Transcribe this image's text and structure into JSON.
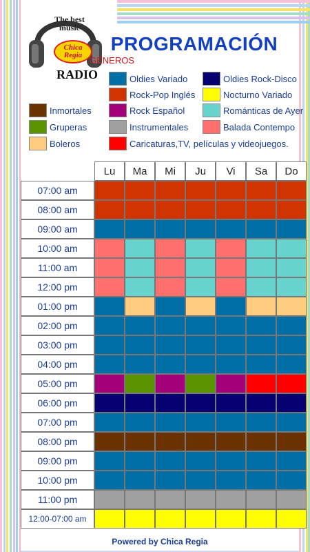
{
  "colors": {
    "oldies_variado": "#006fa5",
    "rock_pop_ingles": "#d03400",
    "rock_espanol": "#a4007a",
    "romanticas_ayer": "#66d3cc",
    "balada_contempo": "#ff6f6e",
    "oldies_rock_disco": "#060070",
    "nocturno_variado": "#ffff00",
    "inmortales": "#6a3200",
    "gruperas": "#5a9400",
    "boleros": "#ffcd80",
    "instrumentales": "#a0a0a0",
    "caricaturas": "#ff0000",
    "title_blue": "#1240c0",
    "generos_red": "#d01515"
  },
  "logo": {
    "line1": "The best",
    "line2": "music",
    "brand": "Chica Regia",
    "radio": "RADIO"
  },
  "title": "PROGRAMACIÓN",
  "generos_title": "GÉNEROS",
  "legend": [
    {
      "label": "Oldies Variado",
      "color": "#006fa5"
    },
    {
      "label": "Oldies Rock-Disco",
      "color": "#060070"
    },
    {
      "label": "Rock-Pop Inglés",
      "color": "#d03400"
    },
    {
      "label": "Nocturno Variado",
      "color": "#ffff00"
    },
    {
      "label": "Inmortales",
      "color": "#6a3200"
    },
    {
      "label": "Rock Español",
      "color": "#a4007a"
    },
    {
      "label": "Románticas de Ayer",
      "color": "#66d3cc"
    },
    {
      "label": "Gruperas",
      "color": "#5a9400"
    },
    {
      "label": "Instrumentales",
      "color": "#a0a0a0"
    },
    {
      "label": "Balada Contempo",
      "color": "#ff6f6e"
    },
    {
      "label": "Boleros",
      "color": "#ffcd80"
    },
    {
      "label": "Caricaturas,TV, películas y videojuegos.",
      "color": "#ff0000"
    }
  ],
  "days": [
    "Lu",
    "Ma",
    "Mi",
    "Ju",
    "Vi",
    "Sa",
    "Do"
  ],
  "schedule": [
    {
      "time": "07:00 am",
      "genres": [
        "rock_pop_ingles",
        "rock_pop_ingles",
        "rock_pop_ingles",
        "rock_pop_ingles",
        "rock_pop_ingles",
        "rock_pop_ingles",
        "rock_pop_ingles"
      ]
    },
    {
      "time": "08:00 am",
      "genres": [
        "rock_pop_ingles",
        "rock_pop_ingles",
        "rock_pop_ingles",
        "rock_pop_ingles",
        "rock_pop_ingles",
        "rock_pop_ingles",
        "rock_pop_ingles"
      ]
    },
    {
      "time": "09:00 am",
      "genres": [
        "oldies_variado",
        "oldies_variado",
        "oldies_variado",
        "oldies_variado",
        "oldies_variado",
        "oldies_variado",
        "oldies_variado"
      ]
    },
    {
      "time": "10:00 am",
      "genres": [
        "balada_contempo",
        "romanticas_ayer",
        "balada_contempo",
        "romanticas_ayer",
        "balada_contempo",
        "romanticas_ayer",
        "romanticas_ayer"
      ]
    },
    {
      "time": "11:00 am",
      "genres": [
        "balada_contempo",
        "romanticas_ayer",
        "balada_contempo",
        "romanticas_ayer",
        "balada_contempo",
        "romanticas_ayer",
        "romanticas_ayer"
      ]
    },
    {
      "time": "12:00 pm",
      "genres": [
        "balada_contempo",
        "romanticas_ayer",
        "balada_contempo",
        "romanticas_ayer",
        "balada_contempo",
        "romanticas_ayer",
        "romanticas_ayer"
      ]
    },
    {
      "time": "01:00 pm",
      "genres": [
        "oldies_variado",
        "boleros",
        "oldies_variado",
        "boleros",
        "oldies_variado",
        "boleros",
        "boleros"
      ]
    },
    {
      "time": "02:00 pm",
      "genres": [
        "oldies_variado",
        "oldies_variado",
        "oldies_variado",
        "oldies_variado",
        "oldies_variado",
        "oldies_variado",
        "oldies_variado"
      ]
    },
    {
      "time": "03:00 pm",
      "genres": [
        "oldies_variado",
        "oldies_variado",
        "oldies_variado",
        "oldies_variado",
        "oldies_variado",
        "oldies_variado",
        "oldies_variado"
      ]
    },
    {
      "time": "04:00 pm",
      "genres": [
        "oldies_variado",
        "oldies_variado",
        "oldies_variado",
        "oldies_variado",
        "oldies_variado",
        "oldies_variado",
        "oldies_variado"
      ]
    },
    {
      "time": "05:00 pm",
      "genres": [
        "rock_espanol",
        "gruperas",
        "rock_espanol",
        "gruperas",
        "rock_espanol",
        "caricaturas",
        "caricaturas"
      ]
    },
    {
      "time": "06:00 pm",
      "genres": [
        "oldies_rock_disco",
        "oldies_rock_disco",
        "oldies_rock_disco",
        "oldies_rock_disco",
        "oldies_rock_disco",
        "oldies_rock_disco",
        "oldies_rock_disco"
      ]
    },
    {
      "time": "07:00 pm",
      "genres": [
        "oldies_variado",
        "oldies_variado",
        "oldies_variado",
        "oldies_variado",
        "oldies_variado",
        "oldies_variado",
        "oldies_variado"
      ]
    },
    {
      "time": "08:00 pm",
      "genres": [
        "inmortales",
        "inmortales",
        "inmortales",
        "inmortales",
        "inmortales",
        "inmortales",
        "inmortales"
      ]
    },
    {
      "time": "09:00 pm",
      "genres": [
        "oldies_variado",
        "oldies_variado",
        "oldies_variado",
        "oldies_variado",
        "oldies_variado",
        "oldies_variado",
        "oldies_variado"
      ]
    },
    {
      "time": "10:00 pm",
      "genres": [
        "oldies_variado",
        "oldies_variado",
        "oldies_variado",
        "oldies_variado",
        "oldies_variado",
        "oldies_variado",
        "oldies_variado"
      ]
    },
    {
      "time": "11:00 pm",
      "genres": [
        "instrumentales",
        "instrumentales",
        "instrumentales",
        "instrumentales",
        "instrumentales",
        "instrumentales",
        "instrumentales"
      ]
    },
    {
      "time": "12:00-07:00 am",
      "genres": [
        "nocturno_variado",
        "nocturno_variado",
        "nocturno_variado",
        "nocturno_variado",
        "nocturno_variado",
        "nocturno_variado",
        "nocturno_variado"
      ]
    }
  ],
  "footer": "Powered by Chica Regia"
}
